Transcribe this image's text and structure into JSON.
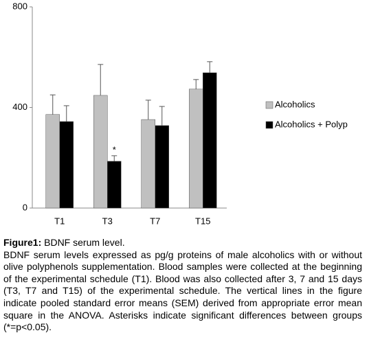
{
  "chart_data": {
    "type": "bar",
    "categories": [
      "T1",
      "T3",
      "T7",
      "T15"
    ],
    "series": [
      {
        "name": "Alcoholics",
        "color": "#c0c0c0",
        "values": [
          372,
          448,
          352,
          473
        ],
        "errors": [
          78,
          123,
          77,
          38
        ]
      },
      {
        "name": "Alcoholics + Polyp",
        "color": "#000000",
        "values": [
          344,
          186,
          328,
          538
        ],
        "errors": [
          63,
          22,
          76,
          44
        ]
      }
    ],
    "annotations": [
      {
        "text": "*",
        "category": "T3",
        "series": "Alcoholics + Polyp"
      }
    ],
    "ylim": [
      0,
      800
    ],
    "yticks": [
      0,
      400,
      800
    ],
    "grid": false,
    "legend": "right"
  },
  "caption": {
    "label": "Figure1:",
    "title": "BDNF serum level.",
    "text": "BDNF serum levels expressed as pg/g proteins of male alcoholics with or without olive polyphenols supplementation. Blood samples were collected at the beginning of the experimental schedule (T1). Blood was also collected after 3, 7 and 15 days (T3, T7 and T15) of the experimental schedule. The vertical lines in the figure indicate pooled standard error means (SEM) derived from appropriate error mean square in the ANOVA. Asterisks indicate significant differences between groups (*=p<0.05)."
  }
}
